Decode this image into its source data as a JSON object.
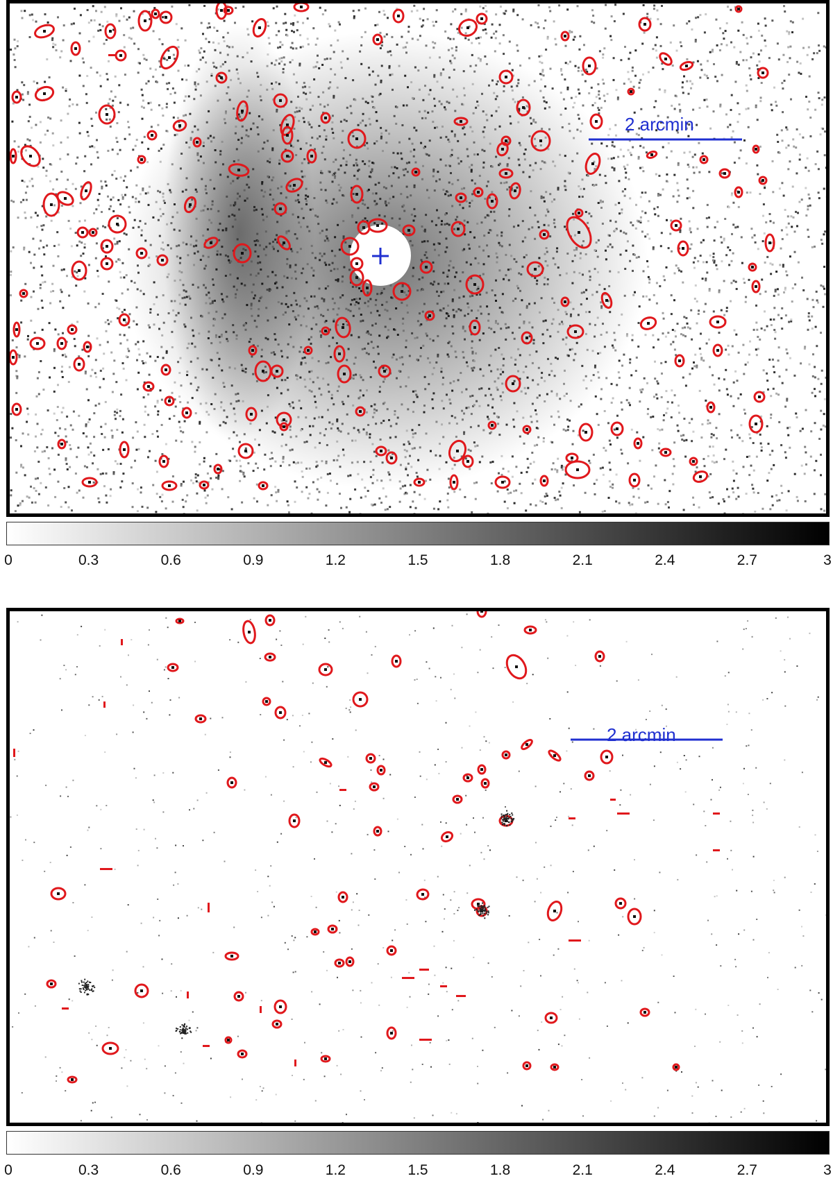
{
  "panels": [
    {
      "id": "top",
      "scale_bar_label": "2 arcmin",
      "colorbar_ticks": [
        "0",
        "0.3",
        "0.6",
        "0.9",
        "1.2",
        "1.5",
        "1.8",
        "2.1",
        "2.4",
        "2.7",
        "3"
      ]
    },
    {
      "id": "bottom",
      "scale_bar_label": "2 arcmin",
      "colorbar_ticks": [
        "0",
        "0.3",
        "0.6",
        "0.9",
        "1.2",
        "1.5",
        "1.8",
        "2.1",
        "2.4",
        "2.7",
        "3"
      ]
    }
  ],
  "colors": {
    "region_outline": "#e0181c",
    "scale_bar": "#1f2fd0",
    "center_marker": "#1f2fd0",
    "frame": "#000000"
  }
}
